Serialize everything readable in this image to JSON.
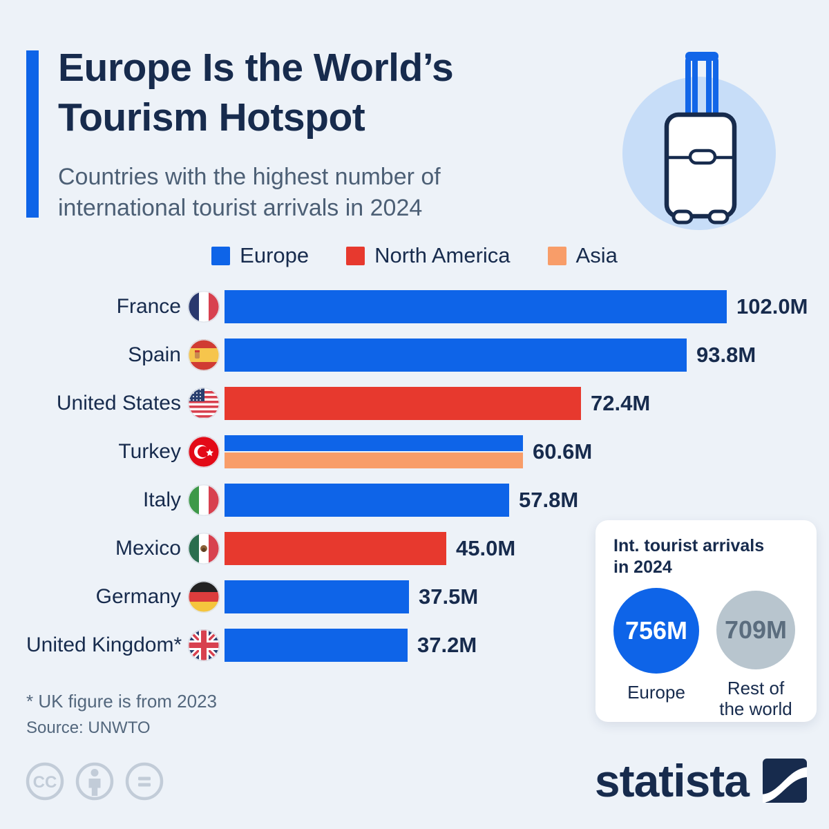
{
  "header": {
    "title_line1": "Europe Is the World’s",
    "title_line2": "Tourism Hotspot",
    "subtitle_line1": "Countries with the highest number of",
    "subtitle_line2": "international tourist arrivals in 2024"
  },
  "legend": [
    {
      "label": "Europe",
      "color": "#0e64e8"
    },
    {
      "label": "North America",
      "color": "#e7392e"
    },
    {
      "label": "Asia",
      "color": "#f89d69"
    }
  ],
  "chart_data": {
    "type": "bar",
    "orientation": "horizontal",
    "title": "Countries with the highest number of international tourist arrivals in 2024",
    "unit": "million international tourist arrivals",
    "xlim": [
      0,
      107
    ],
    "grid": false,
    "rows": [
      {
        "country": "France",
        "flag": "fr",
        "value": 102.0,
        "label": "102.0M",
        "region": "Europe"
      },
      {
        "country": "Spain",
        "flag": "es",
        "value": 93.8,
        "label": "93.8M",
        "region": "Europe"
      },
      {
        "country": "United States",
        "flag": "us",
        "value": 72.4,
        "label": "72.4M",
        "region": "North America"
      },
      {
        "country": "Turkey",
        "flag": "tr",
        "value": 60.6,
        "label": "60.6M",
        "region": "Europe/Asia",
        "split": true
      },
      {
        "country": "Italy",
        "flag": "it",
        "value": 57.8,
        "label": "57.8M",
        "region": "Europe"
      },
      {
        "country": "Mexico",
        "flag": "mx",
        "value": 45.0,
        "label": "45.0M",
        "region": "North America"
      },
      {
        "country": "Germany",
        "flag": "de",
        "value": 37.5,
        "label": "37.5M",
        "region": "Europe"
      },
      {
        "country": "United Kingdom*",
        "flag": "gb",
        "value": 37.2,
        "label": "37.2M",
        "region": "Europe"
      }
    ]
  },
  "panel": {
    "title_line1": "Int. tourist arrivals",
    "title_line2": "in 2024",
    "circles": [
      {
        "value": "756M",
        "label": "Europe",
        "color": "#0e64e8"
      },
      {
        "value": "709M",
        "label": "Rest of the world",
        "color": "#b8c5ce"
      }
    ]
  },
  "footer": {
    "note": "* UK figure is from 2023",
    "source": "Source: UNWTO",
    "brand": "statista"
  },
  "colors": {
    "background": "#edf2f8",
    "navy_text": "#172b4d",
    "subtitle_gray": "#4c5f75",
    "europe_blue": "#0e64e8",
    "north_america_red": "#e7392e",
    "asia_orange": "#f89d69",
    "rest_world_gray": "#b8c5ce",
    "suitcase_circle": "#c7ddf8",
    "cc_gray": "#c2ccd8"
  }
}
